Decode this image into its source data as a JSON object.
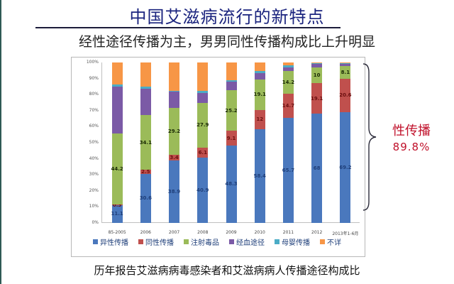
{
  "slide": {
    "title": "中国艾滋病流行的新特点",
    "subtitle": "经性途径传播为主，男男同性传播构成比上升明显",
    "caption": "历年报告艾滋病病毒感染者和艾滋病病人传播途径构成比",
    "annotation": {
      "label": "性传播",
      "value": "89.8%",
      "color": "#c0102a"
    }
  },
  "chart_data": {
    "type": "bar",
    "stacked": true,
    "percent": true,
    "title": "历年报告艾滋病病毒感染者和艾滋病病人传播途径构成比",
    "xlabel": "",
    "ylabel": "",
    "ylim": [
      0,
      100
    ],
    "yticks": [
      "0%",
      "10%",
      "20%",
      "30%",
      "40%",
      "50%",
      "60%",
      "70%",
      "80%",
      "90%",
      "100%"
    ],
    "grid": false,
    "legend_position": "bottom",
    "categories": [
      "85-2005",
      "2006",
      "2007",
      "2008",
      "2009",
      "2010",
      "2011",
      "2012",
      "2013年1-6月"
    ],
    "series": [
      {
        "name": "异性传播",
        "color": "#4a78bd",
        "label_color": "#1f3f7a",
        "values": [
          11.1,
          30.6,
          38.9,
          40.9,
          48.3,
          58.4,
          65.7,
          68,
          69.2
        ],
        "labeled": true
      },
      {
        "name": "同性传播",
        "color": "#c0504d",
        "label_color": "#6b0f0f",
        "values": [
          0.3,
          2.5,
          3.4,
          6.1,
          9.1,
          12,
          14.7,
          19.1,
          20.6
        ],
        "labeled": true
      },
      {
        "name": "注射毒品",
        "color": "#9bbb59",
        "label_color": "#1a2a05",
        "values": [
          44.2,
          34.1,
          29.2,
          27.9,
          25.2,
          19.1,
          14.2,
          10,
          8.1
        ],
        "labeled": true
      },
      {
        "name": "经血途径",
        "color": "#7b5aa6",
        "label_color": "#ffffff",
        "values": [
          29.4,
          16.5,
          10.3,
          6.3,
          5.3,
          4.0,
          2.5,
          1.9,
          1.2
        ],
        "labeled": false
      },
      {
        "name": "母婴传播",
        "color": "#4bacc6",
        "label_color": "#ffffff",
        "values": [
          1.1,
          1.3,
          0.7,
          1.0,
          1.0,
          1.0,
          1.0,
          0.5,
          0.5
        ],
        "labeled": false
      },
      {
        "name": "不详",
        "color": "#f79646",
        "label_color": "#ffffff",
        "values": [
          13.9,
          15.0,
          17.5,
          17.8,
          11.1,
          5.5,
          1.9,
          0.5,
          0.4
        ],
        "labeled": false
      }
    ],
    "annotations": [
      {
        "text": "性传播 89.8%",
        "target": "2013年1-6月 异性传播+同性传播"
      }
    ]
  }
}
